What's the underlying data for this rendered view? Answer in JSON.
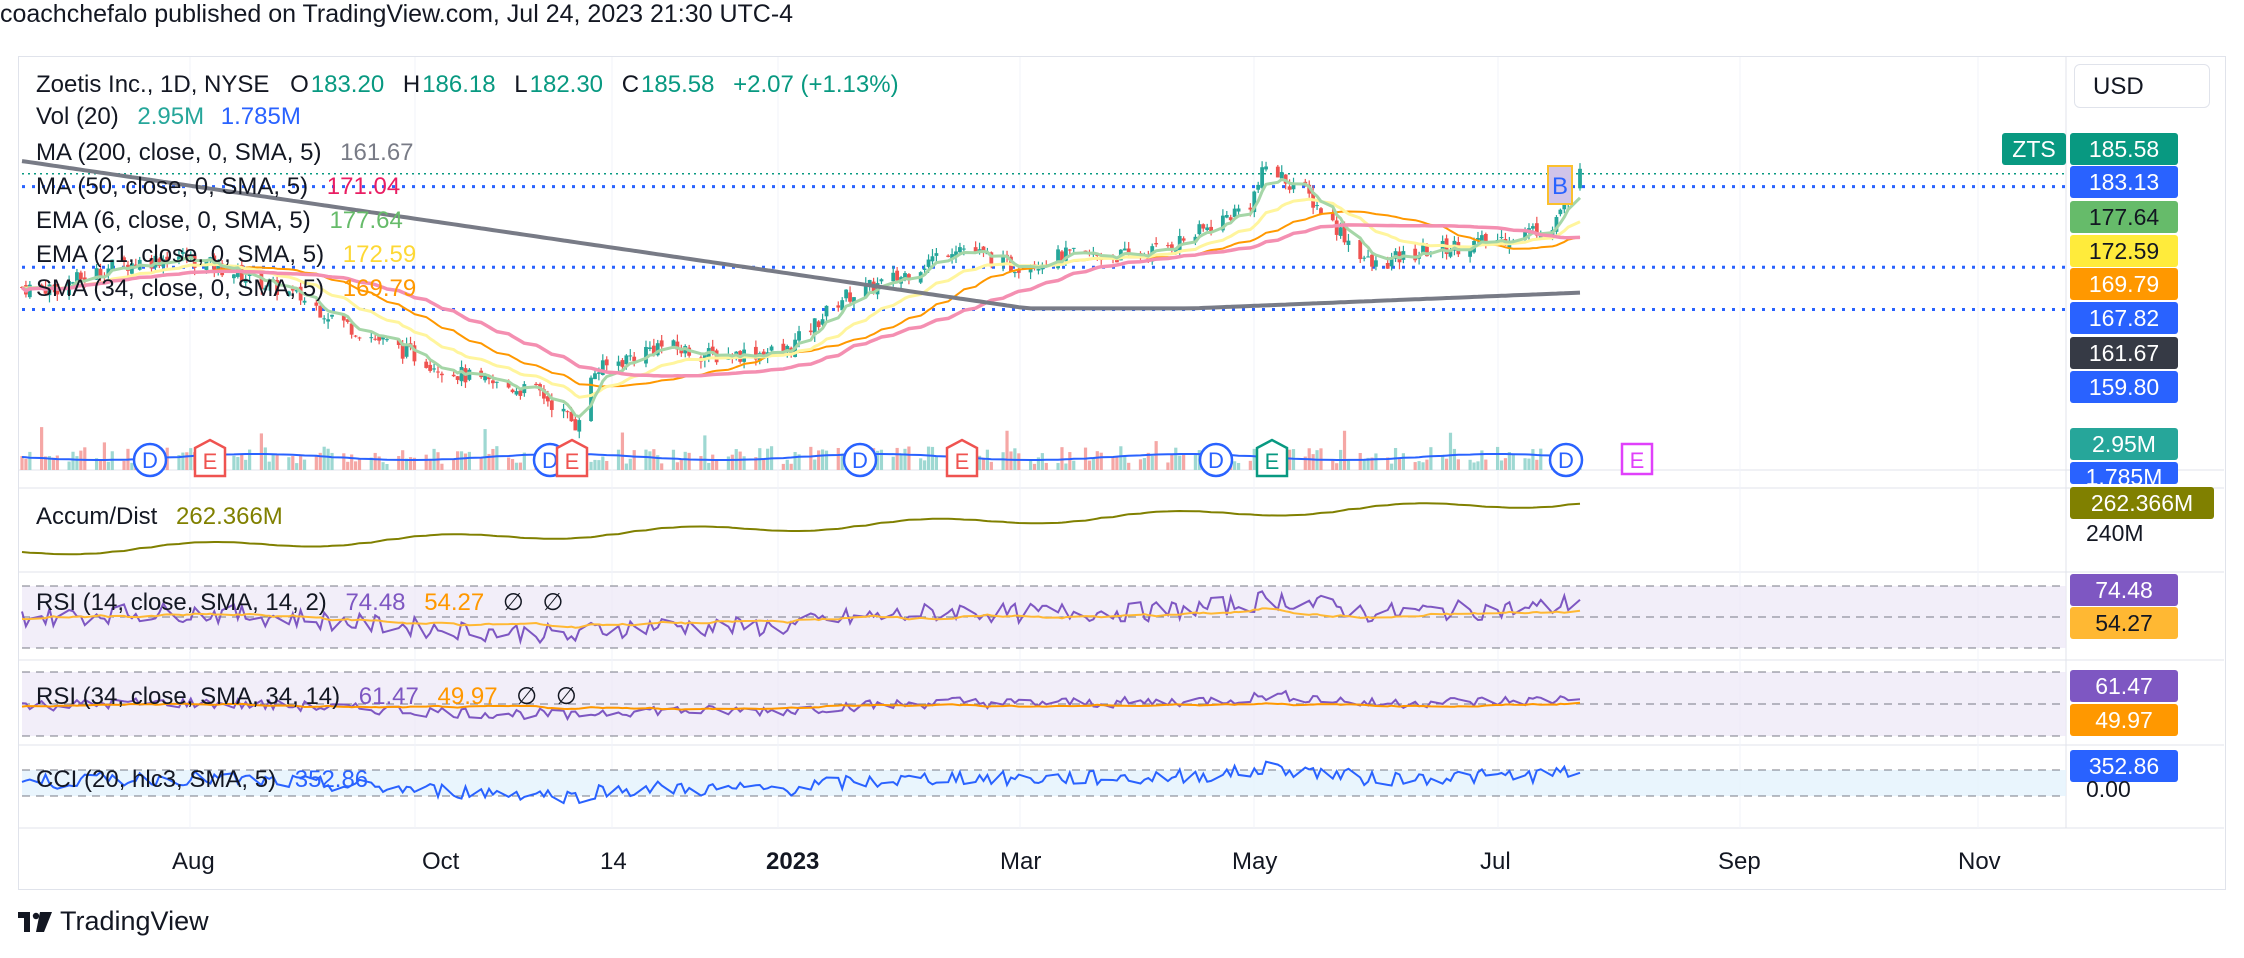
{
  "header": {
    "published": "coachchefalo published on TradingView.com, Jul 24, 2023 21:30 UTC-4"
  },
  "currency": "USD",
  "legend": {
    "title": "Zoetis Inc., 1D, NYSE",
    "o_label": "O",
    "o_value": "183.20",
    "h_label": "H",
    "h_value": "186.18",
    "l_label": "L",
    "l_value": "182.30",
    "c_label": "C",
    "c_value": "185.58",
    "change": "+2.07 (+1.13%)",
    "vol_label": "Vol (20)",
    "vol_value": "2.95M",
    "vol_ma": "1.785M",
    "ma200_label": "MA (200, close, 0, SMA, 5)",
    "ma200_value": "161.67",
    "ma50_label": "MA (50, close, 0, SMA, 5)",
    "ma50_value": "171.04",
    "ema6_label": "EMA (6, close, 0, SMA, 5)",
    "ema6_value": "177.64",
    "ema21_label": "EMA (21, close, 0, SMA, 5)",
    "ema21_value": "172.59",
    "sma34_label": "SMA (34, close, 0, SMA, 5)",
    "sma34_value": "169.79",
    "ad_label": "Accum/Dist",
    "ad_value": "262.366M",
    "rsi14_label": "RSI (14, close, SMA, 14, 2)",
    "rsi14_value": "74.48",
    "rsi14_ma": "54.27",
    "rsi34_label": "RSI (34, close, SMA, 34, 14)",
    "rsi34_value": "61.47",
    "rsi34_ma": "49.97",
    "na_symbol": "∅",
    "cci_label": "CCI (20, hlc3, SMA, 5)",
    "cci_value": "352.86"
  },
  "price_scale": {
    "symbol": "ZTS",
    "last": "185.58",
    "level1": "183.13",
    "ema6": "177.64",
    "ema21": "172.59",
    "sma34": "169.79",
    "level2": "167.82",
    "ma200": "161.67",
    "level3": "159.80",
    "vol": "2.95M",
    "vol_ma": "1.785M",
    "ad": "262.366M",
    "ad_tick": "240M",
    "rsi14": "74.48",
    "rsi14_ma": "54.27",
    "rsi34": "61.47",
    "rsi34_ma": "49.97",
    "cci": "352.86",
    "cci_zero": "0.00"
  },
  "markers": {
    "dividend": "D",
    "earnings": "E",
    "signal": "B"
  },
  "x_axis": {
    "labels": [
      "Aug",
      "Oct",
      "14",
      "2023",
      "Mar",
      "May",
      "Jul",
      "Sep",
      "Nov"
    ]
  },
  "brand": {
    "name": "TradingView"
  },
  "colors": {
    "up": "#26a69a",
    "down": "#ef5350",
    "ma200": "#787b86",
    "ma50": "#f06292",
    "ema6": "#81c784",
    "ema21": "#ffeb3b",
    "sma34": "#ff9800",
    "hline": "#2962ff",
    "rsi": "#7e57c2",
    "ad": "#808000",
    "cci": "#2962ff"
  },
  "chart_data": {
    "type": "line",
    "symbol": "ZTS",
    "interval": "1D",
    "x": [
      "2022-07-01",
      "2022-07-15",
      "2022-08-01",
      "2022-08-15",
      "2022-09-01",
      "2022-09-15",
      "2022-10-03",
      "2022-10-17",
      "2022-11-01",
      "2022-11-10",
      "2022-11-15",
      "2022-12-01",
      "2022-12-15",
      "2023-01-03",
      "2023-01-17",
      "2023-02-01",
      "2023-02-15",
      "2023-03-01",
      "2023-03-15",
      "2023-04-03",
      "2023-04-17",
      "2023-05-01",
      "2023-05-05",
      "2023-05-15",
      "2023-06-01",
      "2023-06-15",
      "2023-07-03",
      "2023-07-17",
      "2023-07-24"
    ],
    "series": [
      {
        "name": "Close",
        "values": [
          164,
          168,
          170,
          167,
          162,
          156,
          150,
          146,
          144,
          138,
          148,
          153,
          151,
          152,
          162,
          166,
          172,
          168,
          170,
          170,
          174,
          180,
          187,
          182,
          168,
          171,
          173,
          176,
          185.58
        ]
      }
    ],
    "horizontal_levels": [
      183.13,
      167.82,
      159.8
    ],
    "ylim": [
      135,
      192
    ]
  }
}
